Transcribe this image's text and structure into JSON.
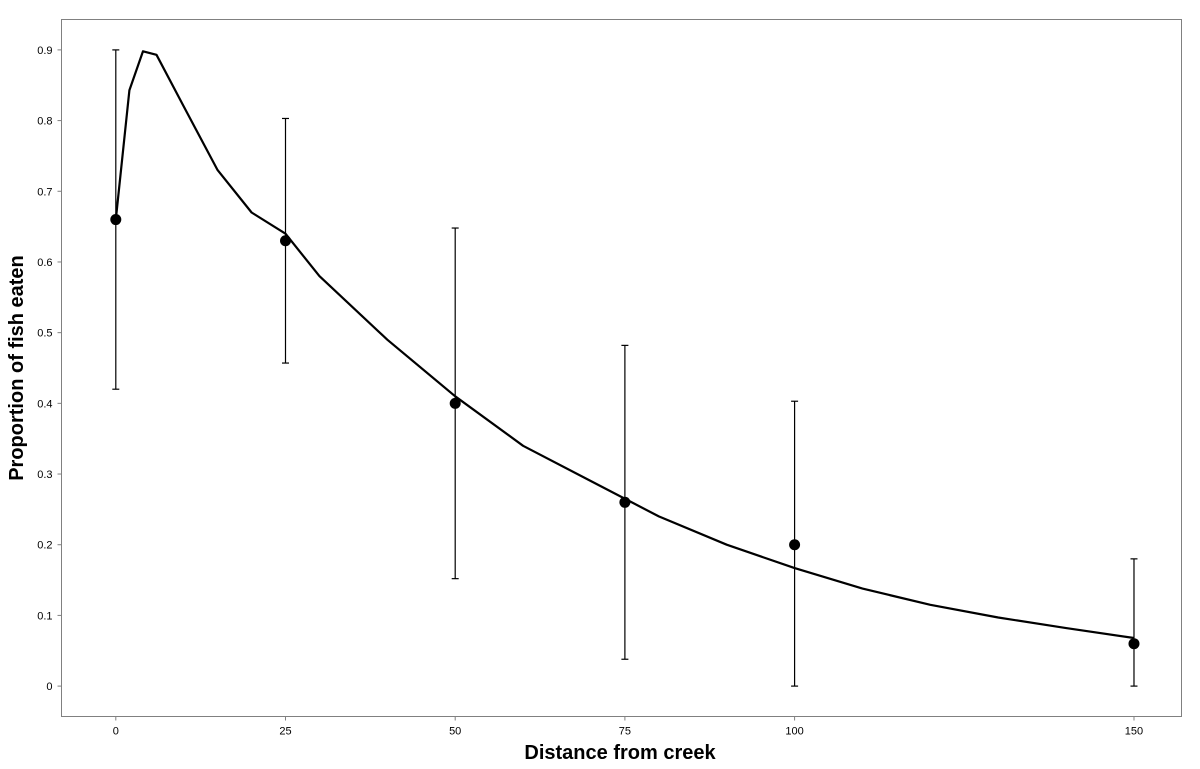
{
  "chart_data": {
    "type": "scatter",
    "title": "",
    "xlabel": "Distance from creek",
    "ylabel": "Proportion of fish eaten",
    "xlim": [
      -8,
      157
    ],
    "ylim": [
      -0.043,
      0.943
    ],
    "grid": false,
    "x_ticks": [
      {
        "value": 0,
        "label": "0"
      },
      {
        "value": 25,
        "label": "25"
      },
      {
        "value": 50,
        "label": "50"
      },
      {
        "value": 75,
        "label": "75"
      },
      {
        "value": 100,
        "label": "100"
      },
      {
        "value": 150,
        "label": "150"
      }
    ],
    "y_ticks": [
      {
        "value": 0,
        "label": "0"
      },
      {
        "value": 0.1,
        "label": "0.1"
      },
      {
        "value": 0.2,
        "label": "0.2"
      },
      {
        "value": 0.3,
        "label": "0.3"
      },
      {
        "value": 0.4,
        "label": "0.4"
      },
      {
        "value": 0.5,
        "label": "0.5"
      },
      {
        "value": 0.6,
        "label": "0.6"
      },
      {
        "value": 0.7,
        "label": "0.7"
      },
      {
        "value": 0.8,
        "label": "0.8"
      },
      {
        "value": 0.9,
        "label": "0.9"
      }
    ],
    "points": [
      {
        "x": 0,
        "y": 0.66,
        "lower": 0.42,
        "upper": 0.9
      },
      {
        "x": 25,
        "y": 0.63,
        "lower": 0.457,
        "upper": 0.803
      },
      {
        "x": 50,
        "y": 0.4,
        "lower": 0.152,
        "upper": 0.648
      },
      {
        "x": 75,
        "y": 0.26,
        "lower": 0.038,
        "upper": 0.482
      },
      {
        "x": 100,
        "y": 0.2,
        "lower": 0.0,
        "upper": 0.403
      },
      {
        "x": 150,
        "y": 0.06,
        "lower": 0.0,
        "upper": 0.18
      }
    ],
    "fit_line": {
      "x": [
        0,
        2,
        4,
        6,
        10,
        15,
        20,
        25,
        30,
        40,
        50,
        60,
        70,
        80,
        90,
        100,
        110,
        120,
        130,
        140,
        150
      ],
      "y": [
        0.66,
        0.843,
        0.898,
        0.893,
        0.82,
        0.73,
        0.67,
        0.64,
        0.58,
        0.49,
        0.41,
        0.34,
        0.29,
        0.24,
        0.2,
        0.167,
        0.138,
        0.115,
        0.097,
        0.082,
        0.068
      ]
    },
    "colors": {
      "line": "#000000",
      "points": "#000000",
      "frame": "#808080"
    }
  }
}
